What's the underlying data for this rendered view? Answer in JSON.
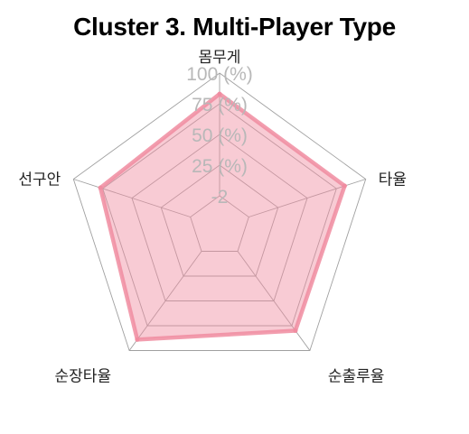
{
  "chart_data": {
    "type": "radar",
    "title": "Cluster 3. Multi-Player Type",
    "axes": [
      "몸무게",
      "타율",
      "순출루율",
      "순장타율",
      "선구안"
    ],
    "tick_labels": [
      "-2",
      "25 (%)",
      "50 (%)",
      "75 (%)",
      "100 (%)"
    ],
    "series": [
      {
        "values": [
          0.83,
          0.82,
          0.8,
          0.89,
          0.77
        ],
        "color": "#f08ca0"
      }
    ],
    "range": [
      0,
      1
    ],
    "grid": true,
    "grid_color": "#a0a0a0",
    "fill_color": "#f08ca0",
    "fill_opacity": 0.45,
    "tick_color": "#b8b8b8"
  }
}
